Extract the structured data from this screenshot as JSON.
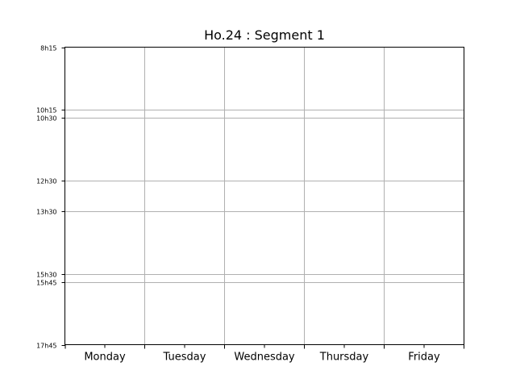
{
  "chart_data": {
    "type": "table",
    "title": "Ho.24 : Segment 1",
    "categories": [
      "Monday",
      "Tuesday",
      "Wednesday",
      "Thursday",
      "Friday"
    ],
    "y_ticks": [
      {
        "label": "8h15",
        "hours": 8.25
      },
      {
        "label": "10h15",
        "hours": 10.25
      },
      {
        "label": "10h30",
        "hours": 10.5
      },
      {
        "label": "12h30",
        "hours": 12.5
      },
      {
        "label": "13h30",
        "hours": 13.5
      },
      {
        "label": "15h30",
        "hours": 15.5
      },
      {
        "label": "15h45",
        "hours": 15.75
      },
      {
        "label": "17h45",
        "hours": 17.75
      }
    ],
    "ylim": [
      8.25,
      17.75
    ],
    "y_inverted": true,
    "grid": true,
    "events": []
  }
}
